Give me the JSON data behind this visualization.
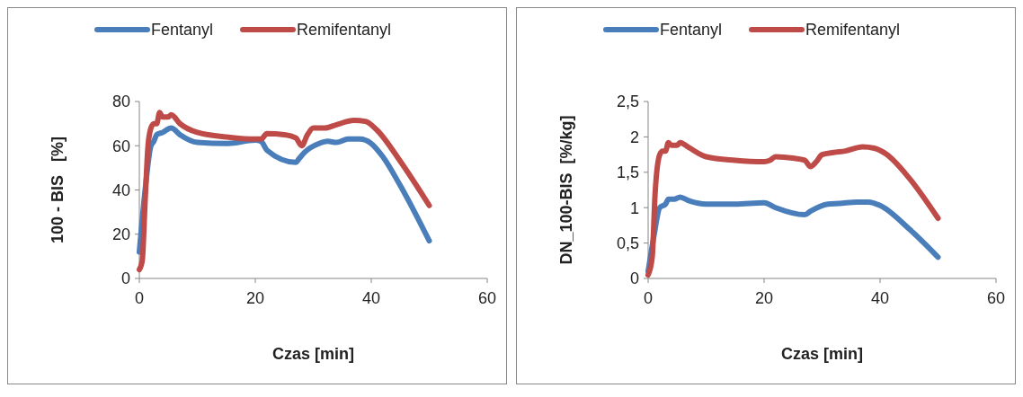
{
  "chart_data": [
    {
      "type": "line",
      "xlabel": "Czas [min]",
      "ylabel": "100 - BIS   [%]",
      "xlim": [
        0,
        60
      ],
      "xticks": [
        0,
        20,
        40,
        60
      ],
      "ylim": [
        0,
        80
      ],
      "yticks": [
        0,
        20,
        40,
        60,
        80
      ],
      "grid": false,
      "legend": "top",
      "marker": "none",
      "line_style": "solid",
      "series": [
        {
          "name": "Fentanyl",
          "color": "#4a7ebb",
          "x": [
            0,
            1,
            2,
            2.5,
            3,
            4,
            5.5,
            7,
            10,
            15,
            20,
            21,
            22,
            27,
            27.5,
            28.5,
            31,
            32.5,
            34,
            36,
            38,
            40,
            42,
            45,
            50
          ],
          "values": [
            12,
            40,
            60,
            62,
            65,
            66,
            68,
            65,
            61.5,
            61,
            62.5,
            62,
            58,
            52.5,
            54,
            57,
            61,
            62,
            61.5,
            63,
            63,
            61,
            55,
            42,
            17
          ]
        },
        {
          "name": "Remifentanyl",
          "color": "#be4b48",
          "x": [
            0,
            0.5,
            1,
            1.5,
            2,
            2.5,
            3,
            3.5,
            4,
            5,
            5.5,
            7,
            10,
            15,
            20,
            21,
            22,
            25,
            27,
            28,
            29,
            30,
            32,
            34,
            37,
            39,
            41,
            45,
            50
          ],
          "values": [
            4,
            8,
            35,
            60,
            68,
            70,
            70,
            75,
            73,
            73,
            74,
            70,
            66,
            64,
            63,
            63,
            65.5,
            65,
            63.5,
            60,
            65,
            68,
            68,
            69.5,
            71.5,
            71,
            67,
            53,
            33
          ]
        }
      ]
    },
    {
      "type": "line",
      "xlabel": "Czas [min]",
      "ylabel": "DN_100-BIS  [%/kg]",
      "xlim": [
        0,
        60
      ],
      "xticks": [
        0,
        20,
        40,
        60
      ],
      "ylim": [
        0,
        2.5
      ],
      "yticks": [
        0,
        {
          "value": 0.5,
          "label": "0,5"
        },
        1,
        {
          "value": 1.5,
          "label": "1,5"
        },
        2,
        {
          "value": 2.5,
          "label": "2,5"
        }
      ],
      "grid": false,
      "legend": "top",
      "marker": "none",
      "line_style": "solid",
      "series": [
        {
          "name": "Fentanyl",
          "color": "#4a7ebb",
          "x": [
            0,
            1,
            2,
            3,
            3.5,
            4.5,
            5.5,
            7,
            10,
            15,
            20,
            22,
            27,
            28,
            31,
            33,
            36,
            38,
            40,
            45,
            50
          ],
          "values": [
            0.1,
            0.6,
            1.0,
            1.05,
            1.12,
            1.12,
            1.15,
            1.1,
            1.05,
            1.05,
            1.07,
            1.0,
            0.9,
            0.95,
            1.05,
            1.06,
            1.08,
            1.08,
            1.03,
            0.7,
            0.3
          ]
        },
        {
          "name": "Remifentanyl",
          "color": "#be4b48",
          "x": [
            0,
            0.7,
            1.2,
            2,
            2.5,
            3,
            3.5,
            4,
            5,
            5.5,
            7,
            10,
            15,
            20,
            21,
            22,
            25,
            27,
            28,
            29,
            30,
            32,
            34,
            37,
            39,
            41,
            45,
            50
          ],
          "values": [
            0.05,
            0.3,
            1.2,
            1.75,
            1.8,
            1.8,
            1.92,
            1.88,
            1.88,
            1.92,
            1.85,
            1.72,
            1.67,
            1.65,
            1.67,
            1.72,
            1.7,
            1.67,
            1.58,
            1.65,
            1.75,
            1.78,
            1.8,
            1.86,
            1.84,
            1.76,
            1.42,
            0.85
          ]
        }
      ]
    }
  ]
}
